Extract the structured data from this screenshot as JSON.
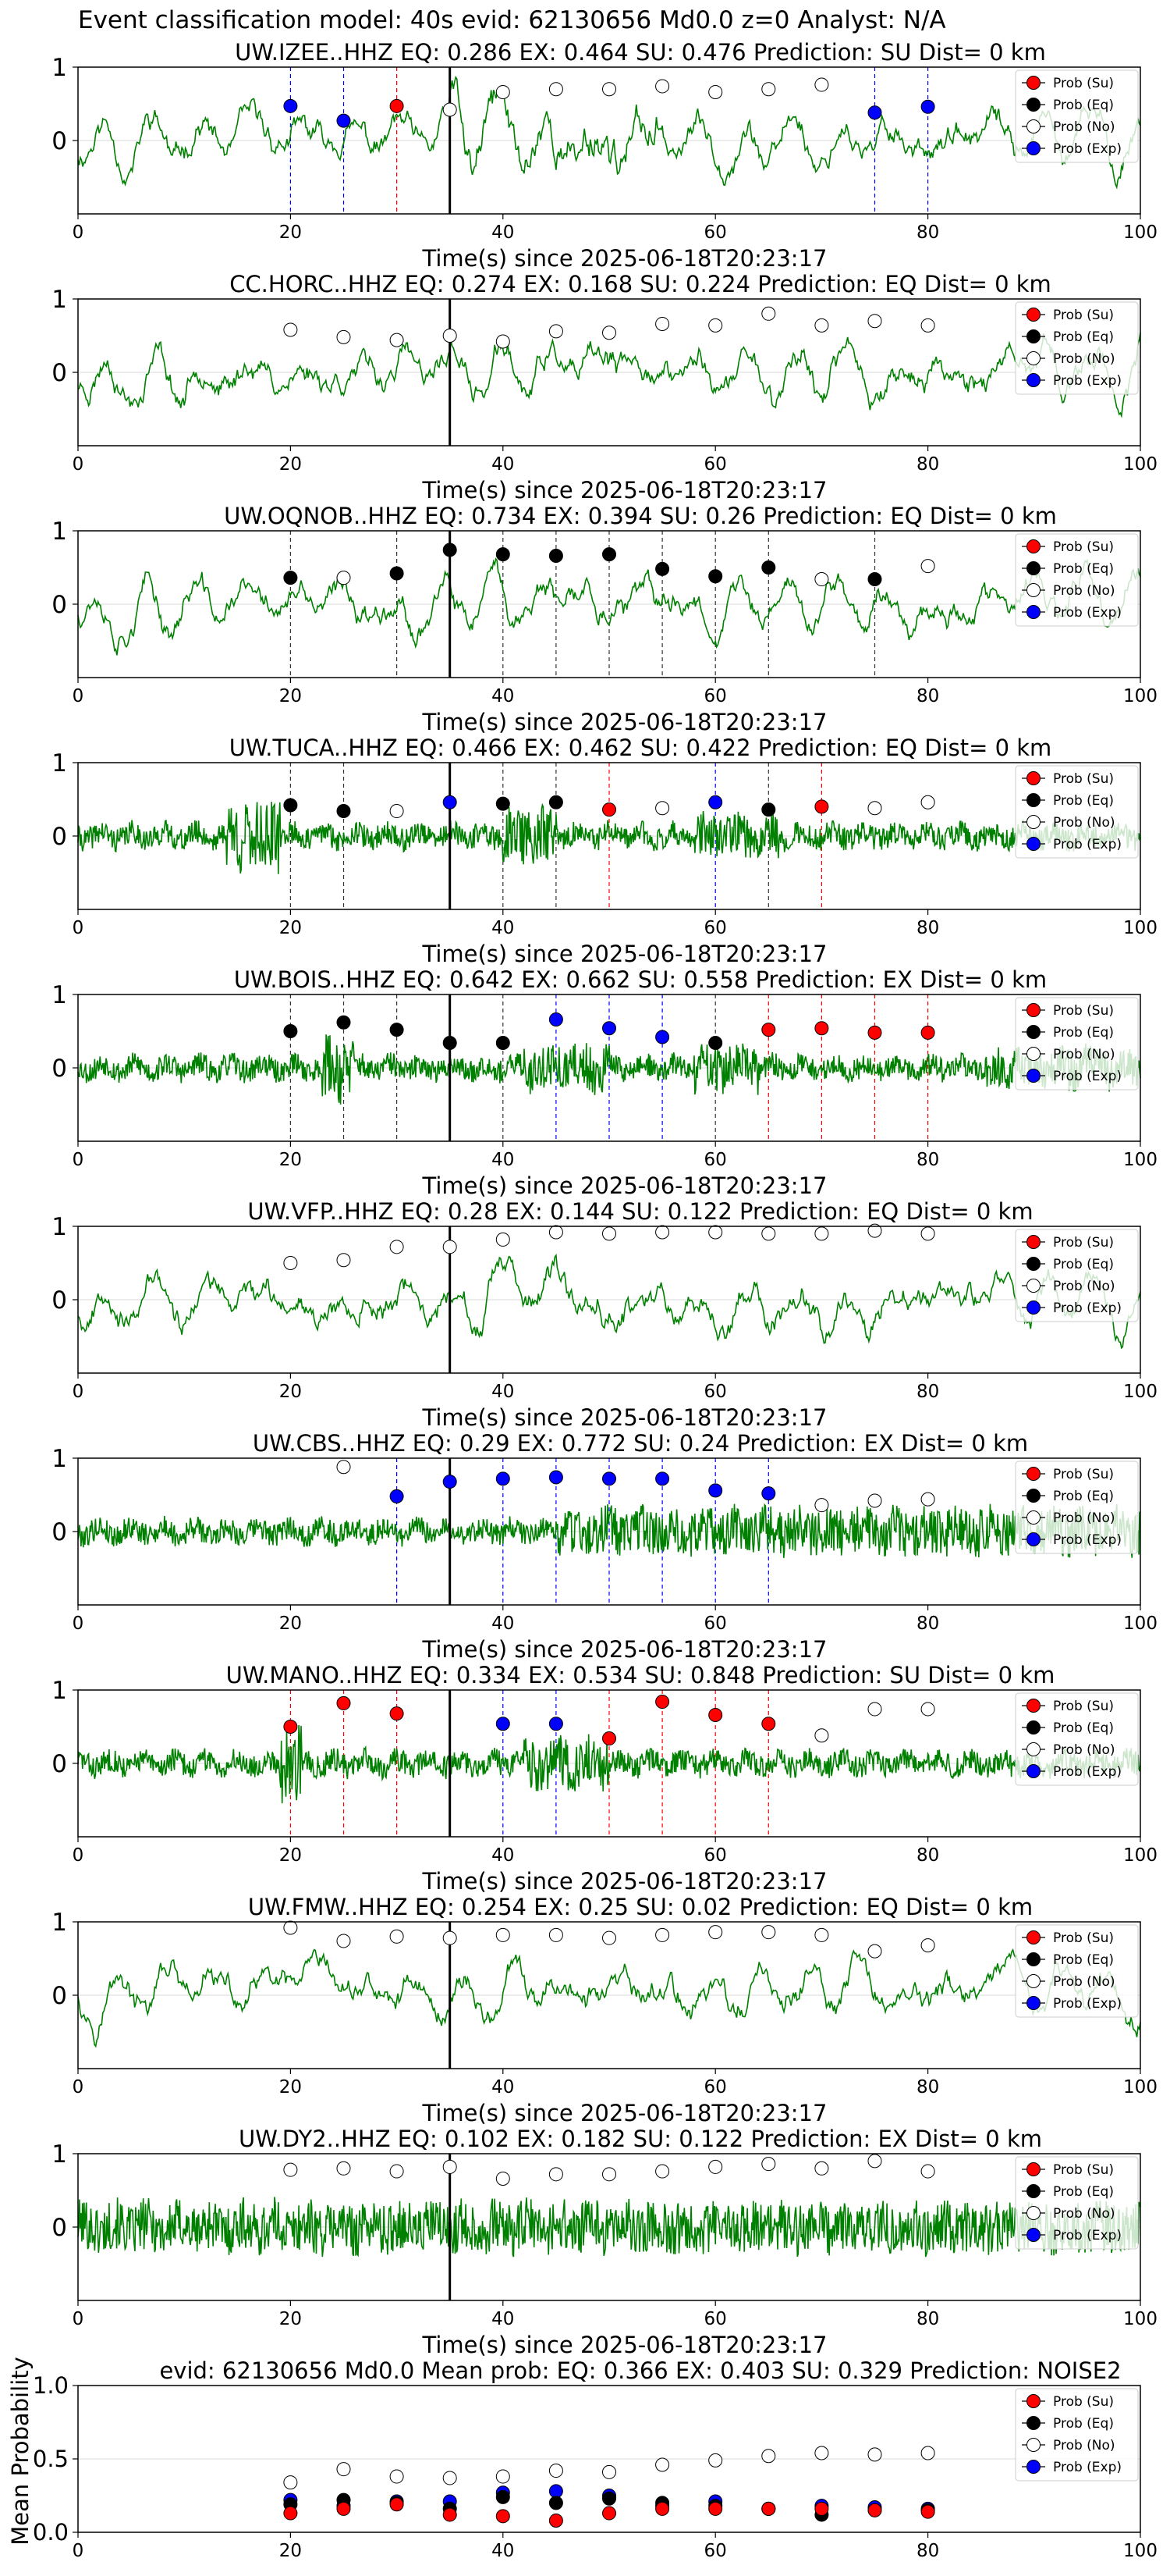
{
  "figure": {
    "suptitle": "Event classification model: 40s evid: 62130656 Md0.0 z=0 Analyst: N/A",
    "xlabel": "Time(s) since 2025-06-18T20:23:17",
    "legend": [
      "Prob (Su)",
      "Prob (Eq)",
      "Prob (No)",
      "Prob (Exp)"
    ],
    "colors": {
      "Su": "#ff0000",
      "Eq": "#000000",
      "No": "#ffffff",
      "Exp": "#0000ff",
      "trace": "#008000"
    }
  },
  "chart_data": [
    {
      "type": "line",
      "title": "UW.IZEE..HHZ   EQ: 0.286  EX: 0.464  SU: 0.476   Prediction: SU    Dist= 0 km",
      "xlim": [
        0,
        100
      ],
      "ylim": [
        -1,
        1
      ],
      "xticks": [
        0,
        20,
        40,
        60,
        80,
        100
      ],
      "yticks": [
        0,
        1
      ],
      "onset": 35,
      "style": "smooth",
      "seed": 11,
      "burst": [
        [
          35,
          55,
          1.6
        ]
      ],
      "x": [
        20,
        25,
        30,
        35,
        40,
        45,
        50,
        55,
        60,
        65,
        70,
        75,
        80
      ],
      "classes": [
        "Exp",
        "Exp",
        "Su",
        "No",
        "No",
        "No",
        "No",
        "No",
        "No",
        "No",
        "No",
        "Exp",
        "Exp"
      ],
      "values": [
        0.47,
        0.27,
        0.47,
        0.42,
        0.66,
        0.7,
        0.7,
        0.74,
        0.66,
        0.7,
        0.76,
        0.38,
        0.46
      ]
    },
    {
      "type": "line",
      "title": "CC.HORC..HHZ   EQ: 0.274  EX: 0.168  SU: 0.224   Prediction: EQ    Dist= 0 km",
      "xlim": [
        0,
        100
      ],
      "ylim": [
        -1,
        1
      ],
      "xticks": [
        0,
        20,
        40,
        60,
        80,
        100
      ],
      "yticks": [
        0,
        1
      ],
      "onset": 35,
      "style": "smooth",
      "seed": 23,
      "burst": [],
      "x": [
        20,
        25,
        30,
        35,
        40,
        45,
        50,
        55,
        60,
        65,
        70,
        75,
        80
      ],
      "classes": [
        "No",
        "No",
        "No",
        "No",
        "No",
        "No",
        "No",
        "No",
        "No",
        "No",
        "No",
        "No",
        "No"
      ],
      "values": [
        0.58,
        0.48,
        0.44,
        0.5,
        0.42,
        0.56,
        0.54,
        0.66,
        0.64,
        0.8,
        0.64,
        0.7,
        0.64
      ]
    },
    {
      "type": "line",
      "title": "UW.OQNOB..HHZ   EQ: 0.734  EX: 0.394  SU: 0.26   Prediction: EQ    Dist= 0 km",
      "xlim": [
        0,
        100
      ],
      "ylim": [
        -1,
        1
      ],
      "xticks": [
        0,
        20,
        40,
        60,
        80,
        100
      ],
      "yticks": [
        0,
        1
      ],
      "onset": 35,
      "style": "smooth",
      "seed": 37,
      "burst": [],
      "x": [
        20,
        25,
        30,
        35,
        40,
        45,
        50,
        55,
        60,
        65,
        70,
        75,
        80
      ],
      "classes": [
        "Eq",
        "No",
        "Eq",
        "Eq",
        "Eq",
        "Eq",
        "Eq",
        "Eq",
        "Eq",
        "Eq",
        "No",
        "Eq",
        "No"
      ],
      "values": [
        0.36,
        0.36,
        0.42,
        0.74,
        0.68,
        0.66,
        0.68,
        0.48,
        0.38,
        0.5,
        0.34,
        0.34,
        0.52
      ]
    },
    {
      "type": "line",
      "title": "UW.TUCA..HHZ   EQ: 0.466  EX: 0.462  SU: 0.422   Prediction: EQ    Dist= 0 km",
      "xlim": [
        0,
        100
      ],
      "ylim": [
        -1,
        1
      ],
      "xticks": [
        0,
        20,
        40,
        60,
        80,
        100
      ],
      "yticks": [
        0,
        1
      ],
      "onset": 35,
      "style": "noisy",
      "seed": 41,
      "burst": [
        [
          14,
          19,
          3.2
        ],
        [
          40,
          45,
          2.4
        ],
        [
          58,
          66,
          1.8
        ]
      ],
      "x": [
        20,
        25,
        30,
        35,
        40,
        45,
        50,
        55,
        60,
        65,
        70,
        75,
        80
      ],
      "classes": [
        "Eq",
        "Eq",
        "No",
        "Exp",
        "Eq",
        "Eq",
        "Su",
        "No",
        "Exp",
        "Eq",
        "Su",
        "No",
        "No"
      ],
      "values": [
        0.42,
        0.34,
        0.34,
        0.46,
        0.44,
        0.46,
        0.36,
        0.38,
        0.46,
        0.36,
        0.4,
        0.38,
        0.46
      ]
    },
    {
      "type": "line",
      "title": "UW.BOIS..HHZ   EQ: 0.642  EX: 0.662  SU: 0.558   Prediction: EX    Dist= 0 km",
      "xlim": [
        0,
        100
      ],
      "ylim": [
        -1,
        1
      ],
      "xticks": [
        0,
        20,
        40,
        60,
        80,
        100
      ],
      "yticks": [
        0,
        1
      ],
      "onset": 35,
      "style": "noisy",
      "seed": 53,
      "burst": [
        [
          23,
          26,
          2.8
        ],
        [
          42,
          50,
          2.0
        ],
        [
          58,
          64,
          2.0
        ],
        [
          85,
          100,
          1.8
        ]
      ],
      "x": [
        20,
        25,
        30,
        35,
        40,
        45,
        50,
        55,
        60,
        65,
        70,
        75,
        80
      ],
      "classes": [
        "Eq",
        "Eq",
        "Eq",
        "Eq",
        "Eq",
        "Exp",
        "Exp",
        "Exp",
        "Eq",
        "Su",
        "Su",
        "Su",
        "Su"
      ],
      "values": [
        0.5,
        0.62,
        0.52,
        0.34,
        0.34,
        0.66,
        0.54,
        0.42,
        0.34,
        0.52,
        0.54,
        0.48,
        0.48
      ]
    },
    {
      "type": "line",
      "title": "UW.VFP..HHZ   EQ: 0.28  EX: 0.144  SU: 0.122   Prediction: EQ    Dist= 0 km",
      "xlim": [
        0,
        100
      ],
      "ylim": [
        -1,
        1
      ],
      "xticks": [
        0,
        20,
        40,
        60,
        80,
        100
      ],
      "yticks": [
        0,
        1
      ],
      "onset": 35,
      "style": "smooth",
      "seed": 67,
      "burst": [],
      "x": [
        20,
        25,
        30,
        35,
        40,
        45,
        50,
        55,
        60,
        65,
        70,
        75,
        80
      ],
      "classes": [
        "No",
        "No",
        "No",
        "No",
        "No",
        "No",
        "No",
        "No",
        "No",
        "No",
        "No",
        "No",
        "No"
      ],
      "values": [
        0.5,
        0.54,
        0.72,
        0.72,
        0.82,
        0.92,
        0.9,
        0.92,
        0.92,
        0.9,
        0.9,
        0.94,
        0.9
      ]
    },
    {
      "type": "line",
      "title": "UW.CBS..HHZ   EQ: 0.29  EX: 0.772  SU: 0.24   Prediction: EX    Dist= 0 km",
      "xlim": [
        0,
        100
      ],
      "ylim": [
        -1,
        1
      ],
      "xticks": [
        0,
        20,
        40,
        60,
        80,
        100
      ],
      "yticks": [
        0,
        1
      ],
      "onset": 35,
      "style": "noisy",
      "seed": 79,
      "burst": [
        [
          45,
          100,
          2.0
        ]
      ],
      "x": [
        25,
        30,
        35,
        40,
        45,
        50,
        55,
        60,
        65,
        70,
        75,
        80
      ],
      "classes": [
        "No",
        "Exp",
        "Exp",
        "Exp",
        "Exp",
        "Exp",
        "Exp",
        "Exp",
        "Exp",
        "No",
        "No",
        "No"
      ],
      "values": [
        0.88,
        0.48,
        0.68,
        0.72,
        0.74,
        0.72,
        0.72,
        0.56,
        0.52,
        0.36,
        0.42,
        0.44
      ]
    },
    {
      "type": "line",
      "title": "UW.MANO..HHZ   EQ: 0.334  EX: 0.534  SU: 0.848   Prediction: SU    Dist= 0 km",
      "xlim": [
        0,
        100
      ],
      "ylim": [
        -1,
        1
      ],
      "xticks": [
        0,
        20,
        40,
        60,
        80,
        100
      ],
      "yticks": [
        0,
        1
      ],
      "onset": 35,
      "style": "noisy",
      "seed": 83,
      "burst": [
        [
          19,
          21,
          3.4
        ],
        [
          42,
          50,
          2.2
        ]
      ],
      "x": [
        20,
        25,
        30,
        40,
        45,
        50,
        55,
        60,
        65,
        70,
        75,
        80
      ],
      "classes": [
        "Su",
        "Su",
        "Su",
        "Exp",
        "Exp",
        "Su",
        "Su",
        "Su",
        "Su",
        "No",
        "No",
        "No"
      ],
      "values": [
        0.5,
        0.82,
        0.68,
        0.54,
        0.54,
        0.34,
        0.84,
        0.66,
        0.54,
        0.38,
        0.74,
        0.74
      ]
    },
    {
      "type": "line",
      "title": "UW.FMW..HHZ   EQ: 0.254  EX: 0.25  SU: 0.02   Prediction: EQ    Dist= 0 km",
      "xlim": [
        0,
        100
      ],
      "ylim": [
        -1,
        1
      ],
      "xticks": [
        0,
        20,
        40,
        60,
        80,
        100
      ],
      "yticks": [
        0,
        1
      ],
      "onset": 35,
      "style": "smooth",
      "seed": 97,
      "burst": [],
      "x": [
        20,
        25,
        30,
        35,
        40,
        45,
        50,
        55,
        60,
        65,
        70,
        75,
        80
      ],
      "classes": [
        "No",
        "No",
        "No",
        "No",
        "No",
        "No",
        "No",
        "No",
        "No",
        "No",
        "No",
        "No",
        "No"
      ],
      "values": [
        0.92,
        0.74,
        0.8,
        0.78,
        0.82,
        0.82,
        0.78,
        0.82,
        0.86,
        0.86,
        0.82,
        0.6,
        0.68
      ]
    },
    {
      "type": "line",
      "title": "UW.DY2..HHZ   EQ: 0.102  EX: 0.182  SU: 0.122   Prediction: EX    Dist= 0 km",
      "xlim": [
        0,
        100
      ],
      "ylim": [
        -1,
        1
      ],
      "xticks": [
        0,
        20,
        40,
        60,
        80,
        100
      ],
      "yticks": [
        0,
        1
      ],
      "onset": 35,
      "style": "noisy",
      "seed": 101,
      "burst": [
        [
          0,
          100,
          2.2
        ]
      ],
      "x": [
        20,
        25,
        30,
        35,
        40,
        45,
        50,
        55,
        60,
        65,
        70,
        75,
        80
      ],
      "classes": [
        "No",
        "No",
        "No",
        "No",
        "No",
        "No",
        "No",
        "No",
        "No",
        "No",
        "No",
        "No",
        "No"
      ],
      "values": [
        0.78,
        0.8,
        0.76,
        0.82,
        0.66,
        0.72,
        0.72,
        0.76,
        0.82,
        0.86,
        0.8,
        0.9,
        0.76
      ]
    },
    {
      "type": "scatter",
      "title": "evid: 62130656  Md0.0    Mean prob:   EQ: 0.366  EX: 0.403  SU: 0.329   Prediction: NOISE2",
      "ylabel": "Mean Probability",
      "xlim": [
        0,
        100
      ],
      "ylim": [
        0,
        1
      ],
      "xticks": [
        0,
        20,
        40,
        60,
        80,
        100
      ],
      "yticks": [
        0.0,
        0.5,
        1.0
      ],
      "ytick_labels": [
        "0.0",
        "0.5",
        "1.0"
      ],
      "x": [
        20,
        25,
        30,
        35,
        40,
        45,
        50,
        55,
        60,
        65,
        70,
        75,
        80
      ],
      "series": [
        {
          "name": "Prob (No)",
          "class": "No",
          "values": [
            0.34,
            0.43,
            0.38,
            0.37,
            0.38,
            0.42,
            0.41,
            0.46,
            0.49,
            0.52,
            0.54,
            0.53,
            0.54
          ]
        },
        {
          "name": "Prob (Exp)",
          "class": "Exp",
          "values": [
            0.22,
            0.18,
            0.21,
            0.21,
            0.27,
            0.28,
            0.25,
            0.18,
            0.21,
            0.16,
            0.18,
            0.17,
            0.16
          ]
        },
        {
          "name": "Prob (Eq)",
          "class": "Eq",
          "values": [
            0.19,
            0.22,
            0.2,
            0.16,
            0.24,
            0.2,
            0.23,
            0.2,
            0.18,
            0.16,
            0.12,
            0.15,
            0.15
          ]
        },
        {
          "name": "Prob (Su)",
          "class": "Su",
          "values": [
            0.13,
            0.16,
            0.19,
            0.12,
            0.11,
            0.08,
            0.13,
            0.16,
            0.16,
            0.16,
            0.16,
            0.15,
            0.14
          ]
        }
      ]
    }
  ]
}
